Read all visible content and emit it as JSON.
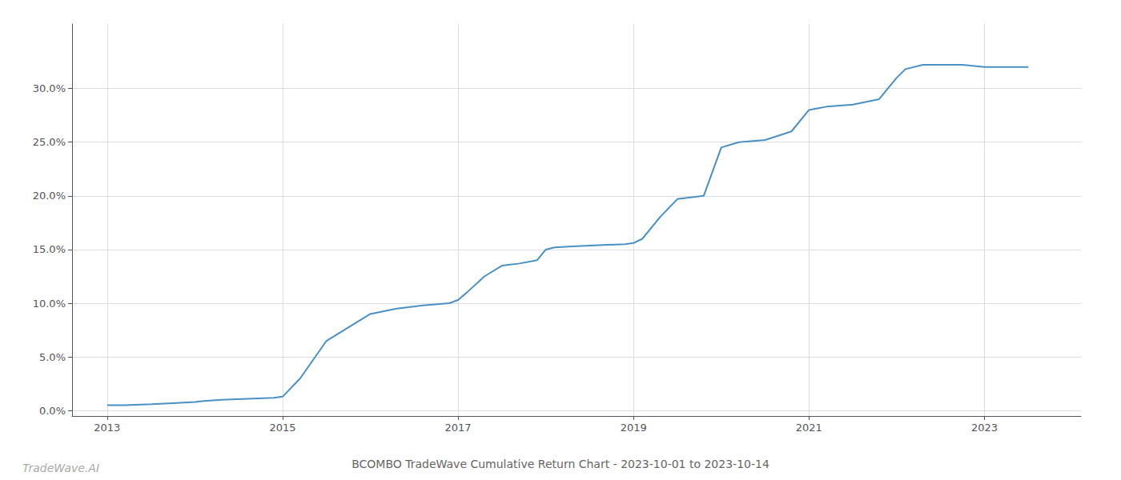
{
  "chart_data": {
    "type": "line",
    "title": "BCOMBO TradeWave Cumulative Return Chart - 2023-10-01 to 2023-10-14",
    "annotations": [
      "TradeWave.AI"
    ],
    "color": "#4a90c4",
    "x": [
      2013.0,
      2013.2,
      2013.5,
      2013.75,
      2014.0,
      2014.1,
      2014.3,
      2014.6,
      2014.9,
      2015.0,
      2015.2,
      2015.5,
      2015.8,
      2016.0,
      2016.3,
      2016.6,
      2016.9,
      2017.0,
      2017.1,
      2017.3,
      2017.5,
      2017.7,
      2017.9,
      2018.0,
      2018.1,
      2018.3,
      2018.6,
      2018.9,
      2019.0,
      2019.1,
      2019.3,
      2019.5,
      2019.8,
      2020.0,
      2020.2,
      2020.5,
      2020.8,
      2021.0,
      2021.2,
      2021.5,
      2021.8,
      2022.0,
      2022.1,
      2022.3,
      2022.5,
      2022.75,
      2023.0,
      2023.5
    ],
    "values": [
      0.005,
      0.005,
      0.006,
      0.007,
      0.008,
      0.009,
      0.01,
      0.011,
      0.012,
      0.013,
      0.03,
      0.065,
      0.08,
      0.09,
      0.095,
      0.098,
      0.1,
      0.103,
      0.11,
      0.125,
      0.135,
      0.137,
      0.14,
      0.15,
      0.152,
      0.153,
      0.154,
      0.155,
      0.156,
      0.16,
      0.18,
      0.197,
      0.2,
      0.245,
      0.25,
      0.252,
      0.26,
      0.28,
      0.283,
      0.285,
      0.29,
      0.31,
      0.318,
      0.322,
      0.322,
      0.322,
      0.32,
      0.32
    ],
    "xlim": [
      2012.6,
      2024.1
    ],
    "xticks": [
      2013,
      2015,
      2017,
      2019,
      2021,
      2023
    ],
    "ylim": [
      -0.005,
      0.36
    ],
    "yticks": [
      {
        "value": 0.0,
        "label": "0.0%"
      },
      {
        "value": 0.05,
        "label": "5.0%"
      },
      {
        "value": 0.1,
        "label": "10.0%"
      },
      {
        "value": 0.15,
        "label": "15.0%"
      },
      {
        "value": 0.2,
        "label": "20.0%"
      },
      {
        "value": 0.25,
        "label": "25.0%"
      },
      {
        "value": 0.3,
        "label": "30.0%"
      }
    ],
    "grid": true
  }
}
